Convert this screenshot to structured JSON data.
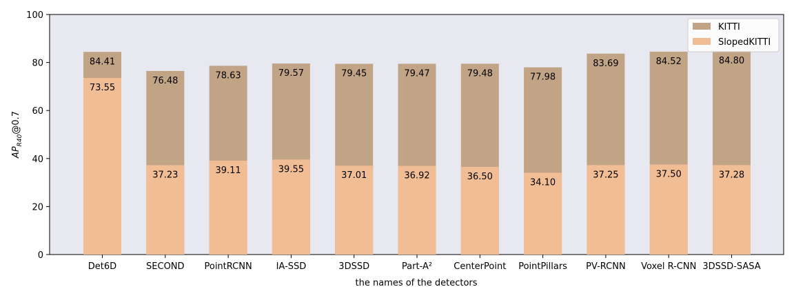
{
  "chart_data": {
    "type": "bar",
    "categories": [
      "Det6D",
      "SECOND",
      "PointRCNN",
      "IA-SSD",
      "3DSSD",
      "Part-A²",
      "CenterPoint",
      "PointPillars",
      "PV-RCNN",
      "Voxel R-CNN",
      "3DSSD-SASA"
    ],
    "series": [
      {
        "name": "KITTI",
        "color": "#c1a386",
        "values": [
          84.41,
          76.48,
          78.63,
          79.57,
          79.45,
          79.47,
          79.48,
          77.98,
          83.69,
          84.52,
          84.8
        ]
      },
      {
        "name": "SlopedKITTI",
        "color": "#f1bd95",
        "values": [
          73.55,
          37.23,
          39.11,
          39.55,
          37.01,
          36.92,
          36.5,
          34.1,
          37.25,
          37.5,
          37.28
        ]
      }
    ],
    "value_labels": {
      "KITTI": [
        "84.41",
        "76.48",
        "78.63",
        "79.57",
        "79.45",
        "79.47",
        "79.48",
        "77.98",
        "83.69",
        "84.52",
        "84.80"
      ],
      "SlopedKITTI": [
        "73.55",
        "37.23",
        "39.11",
        "39.55",
        "37.01",
        "36.92",
        "36.50",
        "34.10",
        "37.25",
        "37.50",
        "37.28"
      ]
    },
    "title": "",
    "xlabel": "the names of the detectors",
    "ylabel_base": "AP",
    "ylabel_sub": "R40",
    "ylabel_suffix": "@0.7",
    "ylim": [
      0,
      100
    ],
    "yticks": [
      "0",
      "20",
      "40",
      "60",
      "80",
      "100"
    ],
    "ytick_values": [
      0,
      20,
      40,
      60,
      80,
      100
    ],
    "plot_background": "#e8e8f1",
    "grid": false,
    "legend_position": "top-right"
  }
}
